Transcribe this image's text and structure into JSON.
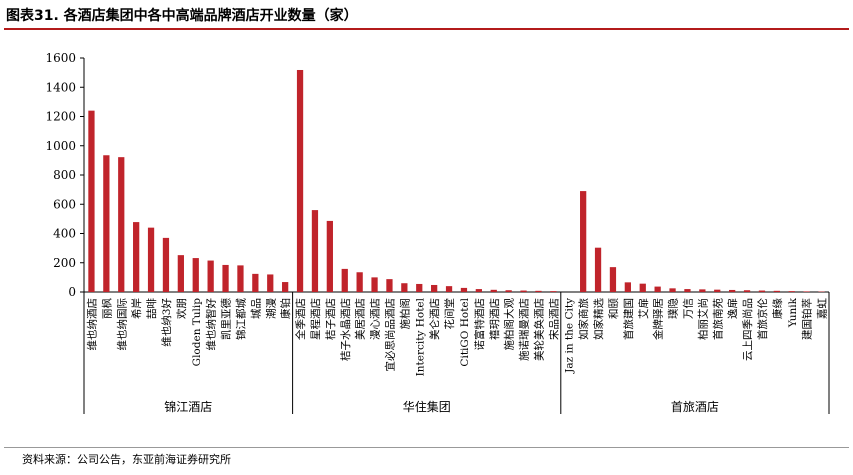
{
  "title": "图表31. 各酒店集团中各中高端品牌酒店开业数量（家）",
  "source": "资料来源：公司公告，东亚前海证券研究所",
  "colors": {
    "bar": "#c0242b",
    "axis": "#000000"
  },
  "chart_data": {
    "type": "bar",
    "ylim": [
      0,
      1600
    ],
    "yticks": [
      0,
      200,
      400,
      600,
      800,
      1000,
      1200,
      1400,
      1600
    ],
    "grid": false,
    "legend": "none",
    "categories": [
      "维也纳酒店",
      "丽枫",
      "维也纳国际",
      "希岸",
      "喆啡",
      "维也纳3好",
      "欢朋",
      "Gloden Tulip",
      "维也纳智好",
      "凯里亚德",
      "锦江都城",
      "城品",
      "潮漫",
      "康铂",
      "全季酒店",
      "星程酒店",
      "桔子酒店",
      "桔子水晶酒店",
      "美居酒店",
      "漫心酒店",
      "宜必思尚品酒店",
      "施柏阁",
      "Intercity Hotel",
      "美仑酒店",
      "花间堂",
      "CitiGO Hotel",
      "诺富特酒店",
      "禧玥酒店",
      "施柏阁大观",
      "施诺瑞曼酒店",
      "美轮美奂酒店",
      "宋品酒店",
      "Jaz in the City",
      "如家商旅",
      "如家精选",
      "和颐",
      "首旅建国",
      "艾扉",
      "金牌驿居",
      "璞隐",
      "万信",
      "柏丽艾尚",
      "首旅南苑",
      "逸扉",
      "云上四季尚品",
      "首旅京伦",
      "康缘",
      "Yunik",
      "建国铂萃",
      "嘉虹"
    ],
    "values": [
      1240,
      935,
      922,
      478,
      440,
      370,
      252,
      232,
      215,
      185,
      182,
      124,
      120,
      68,
      1518,
      560,
      486,
      158,
      135,
      100,
      88,
      60,
      55,
      48,
      40,
      28,
      20,
      15,
      12,
      10,
      8,
      6,
      0,
      690,
      303,
      170,
      66,
      57,
      37,
      25,
      20,
      18,
      16,
      14,
      12,
      10,
      8,
      6,
      4,
      3
    ],
    "groups": [
      {
        "name": "锦江酒店",
        "start": 0,
        "end": 13
      },
      {
        "name": "华住集团",
        "start": 14,
        "end": 31
      },
      {
        "name": "首旅酒店",
        "start": 32,
        "end": 49
      }
    ]
  }
}
